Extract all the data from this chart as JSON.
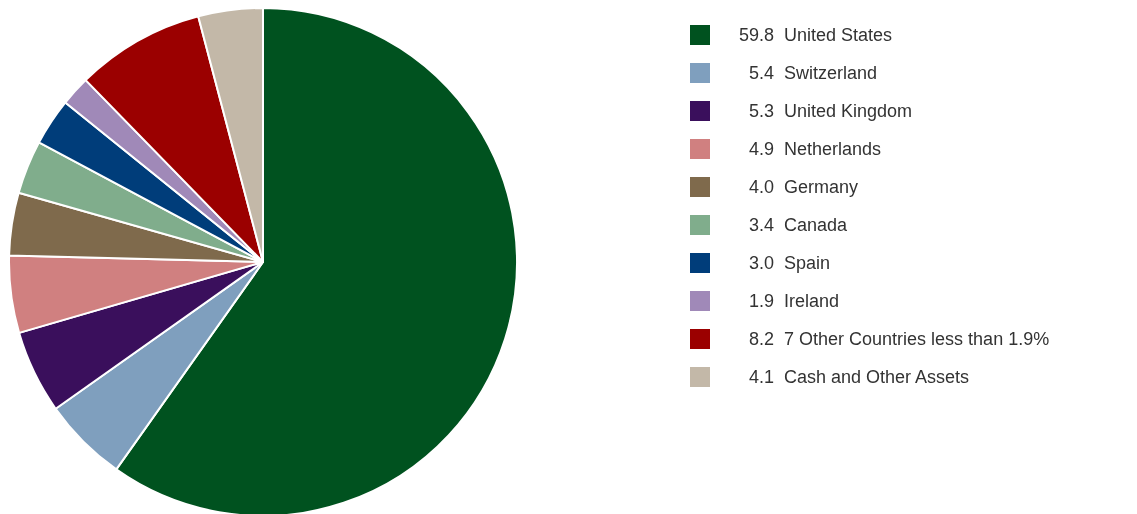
{
  "chart_data": {
    "type": "pie",
    "categories": [
      "United States",
      "Switzerland",
      "United Kingdom",
      "Netherlands",
      "Germany",
      "Canada",
      "Spain",
      "Ireland",
      "7 Other Countries less than 1.9%",
      "Cash and Other Assets"
    ],
    "values": [
      59.8,
      5.4,
      5.3,
      4.9,
      4.0,
      3.4,
      3.0,
      1.9,
      8.2,
      4.1
    ],
    "value_labels": [
      "59.8",
      "5.4",
      "5.3",
      "4.9",
      "4.0",
      "3.4",
      "3.0",
      "1.9",
      "8.2",
      "4.1"
    ],
    "colors": [
      "#00521f",
      "#7f9fbe",
      "#3a0f5c",
      "#d08080",
      "#7f6a4c",
      "#80ad8c",
      "#003d7a",
      "#a089b8",
      "#9b0000",
      "#c3b8a8"
    ],
    "legend": "right"
  }
}
